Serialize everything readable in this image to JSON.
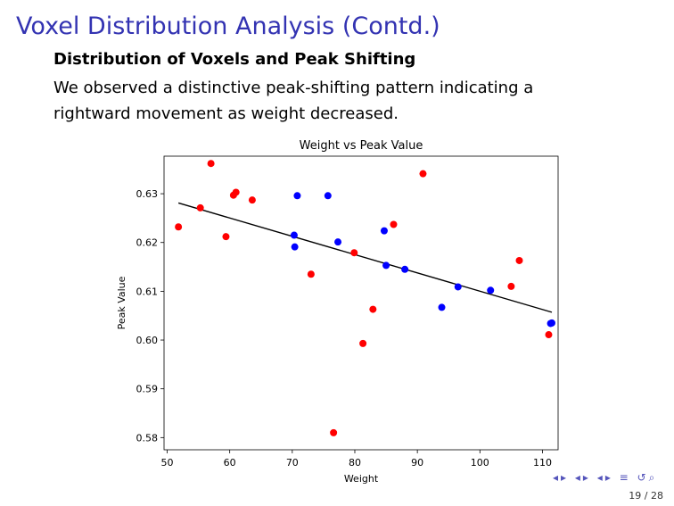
{
  "slide": {
    "title": "Voxel Distribution Analysis (Contd.)",
    "block_title": "Distribution of Voxels and Peak Shifting",
    "body_text": "We observed a distinctive peak-shifting pattern indicating a rightward movement as weight decreased.",
    "page_indicator": "19 / 28"
  },
  "navigation": {
    "icons": [
      "prev-frame-icon",
      "next-frame-icon",
      "prev-section-icon",
      "next-section-icon",
      "prev-subsection-icon",
      "next-subsection-icon",
      "menu-icon",
      "search-icon",
      "back-icon"
    ]
  },
  "colors": {
    "title": "#3333b2",
    "red": "#ff0000",
    "blue": "#0000ff"
  },
  "chart_data": {
    "type": "scatter",
    "title": "Weight vs Peak Value",
    "xlabel": "Weight",
    "ylabel": "Peak Value",
    "xlim": [
      49.5,
      112.5
    ],
    "ylim": [
      0.5775,
      0.6377
    ],
    "xticks": [
      50,
      60,
      70,
      80,
      90,
      100,
      110
    ],
    "yticks": [
      0.58,
      0.59,
      0.6,
      0.61,
      0.62,
      0.63
    ],
    "ytick_labels": [
      "0.58",
      "0.59",
      "0.60",
      "0.61",
      "0.62",
      "0.63"
    ],
    "grid": false,
    "series": [
      {
        "color": "#ff0000",
        "points": [
          [
            51.8,
            0.6232
          ],
          [
            55.3,
            0.6271
          ],
          [
            57.0,
            0.6362
          ],
          [
            59.4,
            0.6212
          ],
          [
            60.6,
            0.6297
          ],
          [
            61.0,
            0.6303
          ],
          [
            63.6,
            0.6287
          ],
          [
            73.0,
            0.6135
          ],
          [
            76.6,
            0.581
          ],
          [
            79.9,
            0.6179
          ],
          [
            81.3,
            0.5993
          ],
          [
            82.9,
            0.6063
          ],
          [
            86.2,
            0.6237
          ],
          [
            90.9,
            0.6341
          ],
          [
            105.0,
            0.611
          ],
          [
            106.3,
            0.6163
          ],
          [
            111.0,
            0.6011
          ]
        ]
      },
      {
        "color": "#0000ff",
        "points": [
          [
            70.3,
            0.6215
          ],
          [
            70.4,
            0.6191
          ],
          [
            70.8,
            0.6296
          ],
          [
            75.7,
            0.6296
          ],
          [
            77.3,
            0.6201
          ],
          [
            84.7,
            0.6224
          ],
          [
            85.0,
            0.6153
          ],
          [
            88.0,
            0.6145
          ],
          [
            93.9,
            0.6067
          ],
          [
            96.5,
            0.6109
          ],
          [
            101.7,
            0.6102
          ],
          [
            111.3,
            0.6034
          ],
          [
            111.5,
            0.6035
          ]
        ]
      }
    ],
    "trendline": [
      [
        51.8,
        0.6281
      ],
      [
        111.5,
        0.6057
      ]
    ]
  }
}
